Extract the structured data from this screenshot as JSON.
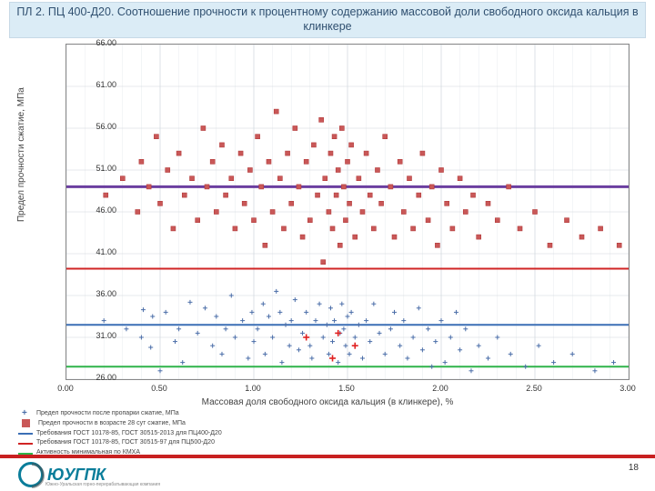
{
  "title": "ПЛ 2. ПЦ 400-Д20. Соотношение прочности к процентному содержанию массовой доли свободного оксида кальция в клинкере",
  "page_number": "18",
  "logo_text": "ЮУГПК",
  "logo_subtitle": "Южно-Уральская горно-перерабатывающая компания",
  "chart": {
    "type": "scatter",
    "xlabel": "Массовая доля свободного оксида кальция (в клинкере), %",
    "ylabel": "Предел прочности сжатие, МПа",
    "xlim": [
      0.0,
      3.0
    ],
    "ylim": [
      26.0,
      66.0
    ],
    "xtick_step": 0.5,
    "ytick_step": 5.0,
    "xticks": [
      "0.00",
      "0.50",
      "1.00",
      "1.50",
      "2.00",
      "2.50",
      "3.00"
    ],
    "yticks": [
      "26.00",
      "31.00",
      "36.00",
      "41.00",
      "46.00",
      "51.00",
      "56.00",
      "61.00",
      "66.00"
    ],
    "background_color": "#ffffff",
    "grid_color": "#cfd6dc",
    "axis_color": "#888888",
    "tick_fontsize": 9,
    "label_fontsize": 10,
    "minor_grid": true,
    "hlines": [
      {
        "y": 32.5,
        "color": "#3b6fb5",
        "width": 2,
        "label": "Требования ГОСТ 10178-85, ГОСТ 30515-2013 для ПЦ400-Д20"
      },
      {
        "y": 39.2,
        "color": "#d02424",
        "width": 2,
        "label": "Требования ГОСТ 10178-85, ГОСТ 30515-97 для ПЦ500-Д20"
      },
      {
        "y": 49.0,
        "color": "#6b3fa0",
        "width": 3,
        "label": "Требования ГОСТ 31108, ГОСТ 30515-2013 для ЦЕМ II/А-Ш 42,5Н"
      },
      {
        "y": 27.5,
        "color": "#2fb44a",
        "width": 2,
        "label": "Активность минимальная по КМХА"
      }
    ],
    "series1": {
      "label": "Предел прочности после пропарки сжатие, МПа",
      "marker": "plus",
      "marker_size": 5,
      "color": "#4a6da8",
      "points": [
        [
          0.2,
          33.0
        ],
        [
          0.32,
          32.0
        ],
        [
          0.4,
          31.0
        ],
        [
          0.41,
          34.3
        ],
        [
          0.45,
          29.8
        ],
        [
          0.46,
          33.5
        ],
        [
          0.5,
          27.0
        ],
        [
          0.53,
          34.0
        ],
        [
          0.58,
          30.5
        ],
        [
          0.6,
          32.0
        ],
        [
          0.62,
          28.0
        ],
        [
          0.66,
          35.2
        ],
        [
          0.7,
          31.5
        ],
        [
          0.74,
          34.5
        ],
        [
          0.78,
          30.0
        ],
        [
          0.8,
          33.5
        ],
        [
          0.83,
          29.0
        ],
        [
          0.85,
          32.0
        ],
        [
          0.88,
          36.0
        ],
        [
          0.9,
          31.0
        ],
        [
          0.94,
          33.0
        ],
        [
          0.97,
          28.5
        ],
        [
          0.99,
          34.0
        ],
        [
          1.0,
          30.5
        ],
        [
          1.02,
          32.0
        ],
        [
          1.05,
          35.0
        ],
        [
          1.06,
          29.0
        ],
        [
          1.08,
          33.5
        ],
        [
          1.1,
          31.0
        ],
        [
          1.12,
          36.5
        ],
        [
          1.14,
          34.0
        ],
        [
          1.15,
          28.0
        ],
        [
          1.17,
          32.5
        ],
        [
          1.19,
          30.0
        ],
        [
          1.2,
          33.0
        ],
        [
          1.22,
          35.5
        ],
        [
          1.24,
          29.5
        ],
        [
          1.26,
          31.5
        ],
        [
          1.28,
          34.0
        ],
        [
          1.3,
          30.0
        ],
        [
          1.31,
          28.5
        ],
        [
          1.33,
          33.0
        ],
        [
          1.35,
          35.0
        ],
        [
          1.37,
          31.0
        ],
        [
          1.39,
          32.5
        ],
        [
          1.4,
          29.0
        ],
        [
          1.41,
          34.5
        ],
        [
          1.42,
          30.5
        ],
        [
          1.43,
          33.0
        ],
        [
          1.45,
          28.0
        ],
        [
          1.46,
          31.5
        ],
        [
          1.47,
          35.0
        ],
        [
          1.48,
          32.0
        ],
        [
          1.49,
          30.0
        ],
        [
          1.5,
          33.5
        ],
        [
          1.51,
          29.0
        ],
        [
          1.52,
          34.0
        ],
        [
          1.54,
          31.0
        ],
        [
          1.56,
          32.5
        ],
        [
          1.58,
          28.5
        ],
        [
          1.6,
          33.0
        ],
        [
          1.62,
          30.5
        ],
        [
          1.64,
          35.0
        ],
        [
          1.67,
          31.5
        ],
        [
          1.7,
          29.0
        ],
        [
          1.73,
          32.0
        ],
        [
          1.75,
          34.0
        ],
        [
          1.78,
          30.0
        ],
        [
          1.8,
          33.0
        ],
        [
          1.82,
          28.5
        ],
        [
          1.85,
          31.0
        ],
        [
          1.88,
          34.5
        ],
        [
          1.9,
          29.5
        ],
        [
          1.93,
          32.0
        ],
        [
          1.95,
          27.5
        ],
        [
          1.97,
          30.5
        ],
        [
          2.0,
          33.0
        ],
        [
          2.02,
          28.0
        ],
        [
          2.05,
          31.0
        ],
        [
          2.08,
          34.0
        ],
        [
          2.1,
          29.5
        ],
        [
          2.13,
          32.0
        ],
        [
          2.16,
          27.0
        ],
        [
          2.2,
          30.0
        ],
        [
          2.25,
          28.5
        ],
        [
          2.3,
          31.0
        ],
        [
          2.37,
          29.0
        ],
        [
          2.45,
          27.5
        ],
        [
          2.52,
          30.0
        ],
        [
          2.6,
          28.0
        ],
        [
          2.7,
          29.0
        ],
        [
          2.82,
          27.0
        ],
        [
          2.92,
          28.0
        ]
      ]
    },
    "series1_highlight": {
      "marker": "plus",
      "marker_size": 7,
      "color": "#e02020",
      "points": [
        [
          1.28,
          31.0
        ],
        [
          1.45,
          31.5
        ],
        [
          1.42,
          28.5
        ],
        [
          1.54,
          30.0
        ]
      ]
    },
    "series2": {
      "label": "Предел прочности в возрасте 28 сут сжатие, МПа",
      "marker": "square",
      "marker_size": 5,
      "color": "#b33a3a",
      "fill": "#c95858",
      "points": [
        [
          0.21,
          48.0
        ],
        [
          0.3,
          50.0
        ],
        [
          0.38,
          46.0
        ],
        [
          0.4,
          52.0
        ],
        [
          0.44,
          49.0
        ],
        [
          0.48,
          55.0
        ],
        [
          0.5,
          47.0
        ],
        [
          0.54,
          51.0
        ],
        [
          0.57,
          44.0
        ],
        [
          0.6,
          53.0
        ],
        [
          0.63,
          48.0
        ],
        [
          0.67,
          50.0
        ],
        [
          0.7,
          45.0
        ],
        [
          0.73,
          56.0
        ],
        [
          0.75,
          49.0
        ],
        [
          0.78,
          52.0
        ],
        [
          0.8,
          46.0
        ],
        [
          0.83,
          54.0
        ],
        [
          0.85,
          48.0
        ],
        [
          0.88,
          50.0
        ],
        [
          0.9,
          44.0
        ],
        [
          0.93,
          53.0
        ],
        [
          0.95,
          47.0
        ],
        [
          0.98,
          51.0
        ],
        [
          1.0,
          45.0
        ],
        [
          1.02,
          55.0
        ],
        [
          1.04,
          49.0
        ],
        [
          1.06,
          42.0
        ],
        [
          1.08,
          52.0
        ],
        [
          1.1,
          46.0
        ],
        [
          1.12,
          58.0
        ],
        [
          1.14,
          50.0
        ],
        [
          1.16,
          44.0
        ],
        [
          1.18,
          53.0
        ],
        [
          1.2,
          47.0
        ],
        [
          1.22,
          56.0
        ],
        [
          1.24,
          49.0
        ],
        [
          1.26,
          43.0
        ],
        [
          1.28,
          52.0
        ],
        [
          1.3,
          45.0
        ],
        [
          1.32,
          54.0
        ],
        [
          1.34,
          48.0
        ],
        [
          1.36,
          57.0
        ],
        [
          1.37,
          40.0
        ],
        [
          1.38,
          50.0
        ],
        [
          1.4,
          46.0
        ],
        [
          1.41,
          53.0
        ],
        [
          1.42,
          44.0
        ],
        [
          1.43,
          55.0
        ],
        [
          1.44,
          48.0
        ],
        [
          1.45,
          51.0
        ],
        [
          1.46,
          42.0
        ],
        [
          1.47,
          56.0
        ],
        [
          1.48,
          49.0
        ],
        [
          1.49,
          45.0
        ],
        [
          1.5,
          52.0
        ],
        [
          1.51,
          47.0
        ],
        [
          1.52,
          54.0
        ],
        [
          1.54,
          43.0
        ],
        [
          1.56,
          50.0
        ],
        [
          1.58,
          46.0
        ],
        [
          1.6,
          53.0
        ],
        [
          1.62,
          48.0
        ],
        [
          1.64,
          44.0
        ],
        [
          1.66,
          51.0
        ],
        [
          1.68,
          47.0
        ],
        [
          1.7,
          55.0
        ],
        [
          1.73,
          49.0
        ],
        [
          1.75,
          43.0
        ],
        [
          1.78,
          52.0
        ],
        [
          1.8,
          46.0
        ],
        [
          1.83,
          50.0
        ],
        [
          1.85,
          44.0
        ],
        [
          1.88,
          48.0
        ],
        [
          1.9,
          53.0
        ],
        [
          1.93,
          45.0
        ],
        [
          1.95,
          49.0
        ],
        [
          1.98,
          42.0
        ],
        [
          2.0,
          51.0
        ],
        [
          2.03,
          47.0
        ],
        [
          2.06,
          44.0
        ],
        [
          2.1,
          50.0
        ],
        [
          2.13,
          46.0
        ],
        [
          2.17,
          48.0
        ],
        [
          2.2,
          43.0
        ],
        [
          2.25,
          47.0
        ],
        [
          2.3,
          45.0
        ],
        [
          2.36,
          49.0
        ],
        [
          2.42,
          44.0
        ],
        [
          2.5,
          46.0
        ],
        [
          2.58,
          42.0
        ],
        [
          2.67,
          45.0
        ],
        [
          2.75,
          43.0
        ],
        [
          2.85,
          44.0
        ],
        [
          2.95,
          42.0
        ]
      ]
    }
  },
  "legend_items": [
    {
      "text": "Предел прочности после пропарки сжатие, МПа",
      "type": "marker",
      "shape": "plus",
      "color": "#4a6da8"
    },
    {
      "text": "Предел прочности в возрасте 28 сут сжатие, МПа",
      "type": "marker",
      "shape": "square",
      "color": "#c95858"
    },
    {
      "text": "Требования ГОСТ 10178-85, ГОСТ 30515-2013 для ПЦ400-Д20",
      "type": "line",
      "color": "#3b6fb5"
    },
    {
      "text": "Требования ГОСТ 10178-85, ГОСТ 30515-97 для ПЦ500-Д20",
      "type": "line",
      "color": "#d02424"
    },
    {
      "text": "Активность минимальная по КМХА",
      "type": "line",
      "color": "#2fb44a"
    }
  ]
}
